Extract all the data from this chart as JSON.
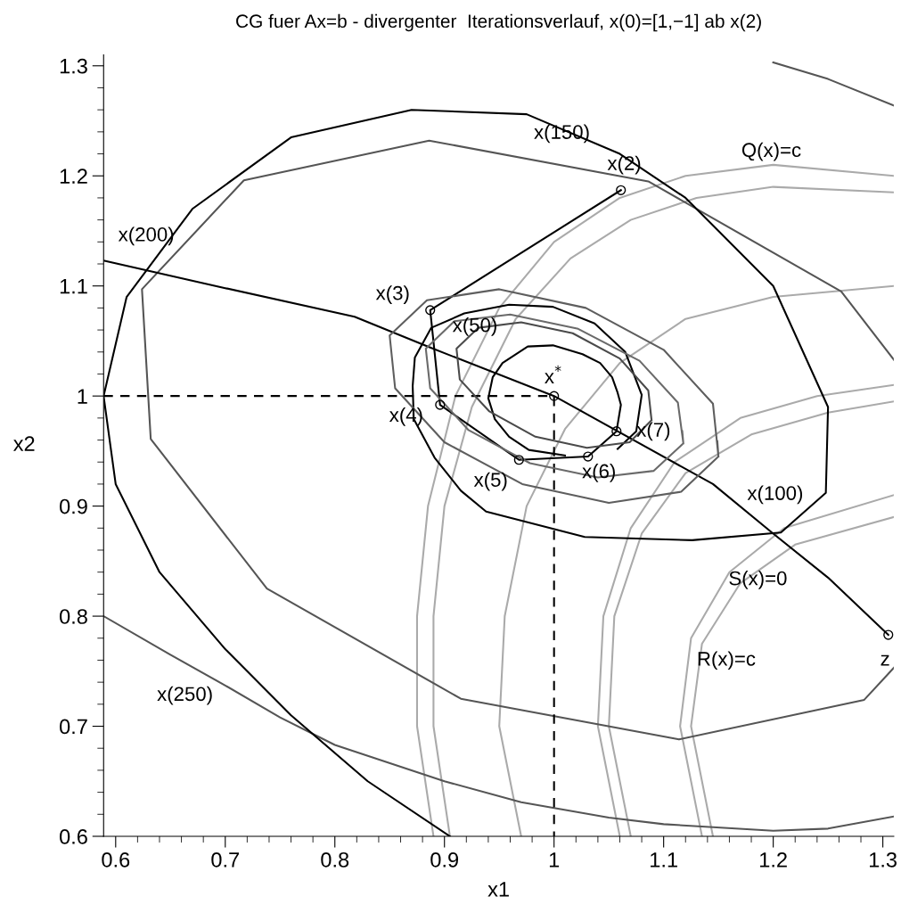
{
  "chart_data": {
    "type": "line",
    "title": "CG fuer Ax=b - divergenter  Iterationsverlauf, x(0)=[1,−1] ab x(2)",
    "xlabel": "x1",
    "ylabel": "x2",
    "xlim": [
      0.589,
      1.31
    ],
    "ylim": [
      0.6,
      1.31
    ],
    "xticks": [
      0.6,
      {
        "value": 0.62,
        "label": null
      },
      {
        "value": 0.64,
        "label": null
      },
      {
        "value": 0.66,
        "label": null
      },
      {
        "value": 0.68,
        "label": null
      },
      0.7,
      {
        "value": 0.72,
        "label": null
      },
      {
        "value": 0.74,
        "label": null
      },
      {
        "value": 0.76,
        "label": null
      },
      {
        "value": 0.78,
        "label": null
      },
      0.8,
      {
        "value": 0.82,
        "label": null
      },
      {
        "value": 0.84,
        "label": null
      },
      {
        "value": 0.86,
        "label": null
      },
      {
        "value": 0.88,
        "label": null
      },
      0.9,
      {
        "value": 0.92,
        "label": null
      },
      {
        "value": 0.94,
        "label": null
      },
      {
        "value": 0.96,
        "label": null
      },
      {
        "value": 0.98,
        "label": null
      },
      1,
      {
        "value": 1.02,
        "label": null
      },
      {
        "value": 1.04,
        "label": null
      },
      {
        "value": 1.06,
        "label": null
      },
      {
        "value": 1.08,
        "label": null
      },
      1.1,
      {
        "value": 1.12,
        "label": null
      },
      {
        "value": 1.14,
        "label": null
      },
      {
        "value": 1.16,
        "label": null
      },
      {
        "value": 1.18,
        "label": null
      },
      1.2,
      {
        "value": 1.22,
        "label": null
      },
      {
        "value": 1.24,
        "label": null
      },
      {
        "value": 1.26,
        "label": null
      },
      {
        "value": 1.28,
        "label": null
      },
      1.3
    ],
    "yticks": [
      0.6,
      {
        "value": 0.62,
        "label": null
      },
      {
        "value": 0.64,
        "label": null
      },
      {
        "value": 0.66,
        "label": null
      },
      {
        "value": 0.68,
        "label": null
      },
      0.7,
      {
        "value": 0.72,
        "label": null
      },
      {
        "value": 0.74,
        "label": null
      },
      {
        "value": 0.76,
        "label": null
      },
      {
        "value": 0.78,
        "label": null
      },
      0.8,
      {
        "value": 0.82,
        "label": null
      },
      {
        "value": 0.84,
        "label": null
      },
      {
        "value": 0.86,
        "label": null
      },
      {
        "value": 0.88,
        "label": null
      },
      0.9,
      {
        "value": 0.92,
        "label": null
      },
      {
        "value": 0.94,
        "label": null
      },
      {
        "value": 0.96,
        "label": null
      },
      {
        "value": 0.98,
        "label": null
      },
      1,
      {
        "value": 1.02,
        "label": null
      },
      {
        "value": 1.04,
        "label": null
      },
      {
        "value": 1.06,
        "label": null
      },
      {
        "value": 1.08,
        "label": null
      },
      1.1,
      {
        "value": 1.12,
        "label": null
      },
      {
        "value": 1.14,
        "label": null
      },
      {
        "value": 1.16,
        "label": null
      },
      {
        "value": 1.18,
        "label": null
      },
      1.2,
      {
        "value": 1.22,
        "label": null
      },
      {
        "value": 1.24,
        "label": null
      },
      {
        "value": 1.26,
        "label": null
      },
      {
        "value": 1.28,
        "label": null
      },
      1.3
    ],
    "grid": false,
    "legend": false,
    "series": [
      {
        "color": "#aaaaaa",
        "x": [
          0.89,
          0.875,
          0.875,
          0.885,
          0.91,
          0.95,
          1.0,
          1.06,
          1.12,
          1.2,
          1.31
        ],
        "values": [
          0.6,
          0.7,
          0.8,
          0.9,
          1.0,
          1.08,
          1.14,
          1.18,
          1.2,
          1.21,
          1.2
        ]
      },
      {
        "color": "#aaaaaa",
        "x": [
          0.905,
          0.89,
          0.89,
          0.9,
          0.925,
          0.965,
          1.015,
          1.07,
          1.13,
          1.2,
          1.31
        ],
        "values": [
          0.6,
          0.7,
          0.8,
          0.9,
          0.99,
          1.07,
          1.125,
          1.16,
          1.18,
          1.19,
          1.185
        ]
      },
      {
        "color": "#aaaaaa",
        "x": [
          0.97,
          0.95,
          0.955,
          0.975,
          1.01,
          1.06,
          1.12,
          1.2,
          1.31
        ],
        "values": [
          0.6,
          0.7,
          0.8,
          0.9,
          0.97,
          1.03,
          1.07,
          1.09,
          1.1
        ]
      },
      {
        "color": "#aaaaaa",
        "x": [
          1.06,
          1.04,
          1.045,
          1.07,
          1.11,
          1.17,
          1.24,
          1.31
        ],
        "values": [
          0.6,
          0.7,
          0.8,
          0.88,
          0.94,
          0.98,
          1.0,
          1.01
        ]
      },
      {
        "color": "#aaaaaa",
        "x": [
          1.07,
          1.05,
          1.055,
          1.08,
          1.12,
          1.18,
          1.25,
          1.31
        ],
        "values": [
          0.6,
          0.7,
          0.8,
          0.875,
          0.93,
          0.965,
          0.985,
          0.995
        ]
      },
      {
        "color": "#aaaaaa",
        "x": [
          1.135,
          1.115,
          1.125,
          1.16,
          1.21,
          1.31
        ],
        "values": [
          0.6,
          0.7,
          0.78,
          0.84,
          0.88,
          0.91
        ]
      },
      {
        "color": "#aaaaaa",
        "x": [
          1.145,
          1.125,
          1.135,
          1.17,
          1.22,
          1.31
        ],
        "values": [
          0.6,
          0.7,
          0.775,
          0.83,
          0.865,
          0.89
        ]
      },
      {
        "color": "#555555",
        "x": [
          1.31,
          1.262,
          1.086,
          0.886,
          0.717,
          0.624,
          0.632,
          0.738,
          0.915,
          1.114,
          1.283,
          1.31
        ],
        "values": [
          1.033,
          1.095,
          1.195,
          1.232,
          1.196,
          1.097,
          0.961,
          0.825,
          0.725,
          0.688,
          0.724,
          0.753
        ]
      },
      {
        "color": "#555555",
        "x": [
          0.589,
          0.65,
          0.7,
          0.75,
          0.8,
          0.9,
          0.97,
          1.05,
          1.1,
          1.2,
          1.25,
          1.31
        ],
        "values": [
          0.8,
          0.765,
          0.737,
          0.708,
          0.683,
          0.65,
          0.631,
          0.617,
          0.611,
          0.605,
          0.607,
          0.618
        ]
      },
      {
        "color": "#555555",
        "x": [
          1.2,
          1.25,
          1.31
        ],
        "values": [
          1.303,
          1.288,
          1.264
        ]
      },
      {
        "color": "#000000",
        "x": [
          0.589,
          0.7,
          0.818,
          0.887,
          1.0,
          1.145,
          1.2,
          1.25,
          1.305
        ],
        "values": [
          1.123,
          1.098,
          1.072,
          1.044,
          1.0,
          0.92,
          0.875,
          0.835,
          0.783
        ]
      },
      {
        "color": "#000000",
        "line_style": "dashed",
        "x": [
          0.589,
          1.0,
          1.0
        ],
        "values": [
          1.0,
          1.0,
          0.6
        ]
      },
      {
        "color": "#000000",
        "x": [
          1.058,
          1.075,
          1.08,
          1.065,
          1.037,
          0.999,
          0.959,
          0.918,
          0.888,
          0.873,
          0.871,
          0.872,
          0.891,
          0.915,
          0.938,
          1.028,
          1.126,
          1.207,
          1.248,
          1.25,
          1.2,
          1.12,
          1.06,
          0.975,
          0.87,
          0.76,
          0.67,
          0.61,
          0.589,
          0.6,
          0.64,
          0.7,
          0.76,
          0.83,
          0.905
        ],
        "values": [
          0.952,
          0.968,
          1.001,
          1.04,
          1.066,
          1.081,
          1.083,
          1.075,
          1.062,
          1.035,
          1.009,
          0.979,
          0.944,
          0.914,
          0.895,
          0.872,
          0.869,
          0.876,
          0.912,
          0.99,
          1.1,
          1.18,
          1.22,
          1.256,
          1.26,
          1.235,
          1.17,
          1.09,
          1.0,
          0.92,
          0.84,
          0.77,
          0.71,
          0.65,
          0.6
        ]
      },
      {
        "color": "#000000",
        "x": [
          1.061,
          0.887,
          0.896,
          0.968,
          1.031,
          1.057,
          1.061,
          1.058,
          1.053,
          1.042,
          1.026,
          0.999,
          0.976,
          0.953,
          0.944,
          0.94,
          0.946,
          0.959,
          0.977,
          1.01
        ],
        "values": [
          1.187,
          1.078,
          0.992,
          0.942,
          0.945,
          0.968,
          0.992,
          1.003,
          1.017,
          1.03,
          1.038,
          1.046,
          1.045,
          1.03,
          1.017,
          0.998,
          0.979,
          0.963,
          0.951,
          0.946
        ]
      },
      {
        "color": "#4a4a4a",
        "x": [
          1.089,
          1.086,
          1.06,
          1.017,
          0.97,
          0.931,
          0.911,
          0.914,
          0.941,
          0.983,
          1.03,
          1.069,
          1.089,
          1.088
        ],
        "values": [
          0.978,
          1.005,
          1.034,
          1.057,
          1.067,
          1.062,
          1.043,
          1.015,
          0.986,
          0.963,
          0.953,
          0.958,
          0.978,
          0.986
        ]
      },
      {
        "color": "#6a6a6a",
        "x": [
          1.118,
          1.113,
          1.078,
          1.022,
          0.96,
          0.909,
          0.883,
          0.887,
          0.922,
          0.978,
          1.04,
          1.091,
          1.118,
          1.117
        ],
        "values": [
          0.957,
          0.994,
          1.032,
          1.061,
          1.074,
          1.068,
          1.043,
          1.007,
          0.969,
          0.939,
          0.926,
          0.932,
          0.957,
          0.968
        ]
      },
      {
        "color": "#5e5e5e",
        "x": [
          1.15,
          1.145,
          1.1,
          1.029,
          0.95,
          0.884,
          0.85,
          0.855,
          0.9,
          0.971,
          1.05,
          1.116,
          1.15,
          1.149
        ],
        "values": [
          0.945,
          0.993,
          1.042,
          1.08,
          1.097,
          1.087,
          1.055,
          1.007,
          0.958,
          0.92,
          0.903,
          0.913,
          0.945,
          0.959
        ]
      },
      {
        "type": "scatter",
        "color": "#000000",
        "marker": "circle",
        "x": [
          1.061,
          0.887,
          0.896,
          0.968,
          1.031,
          1.057,
          1.0,
          1.305
        ],
        "values": [
          1.187,
          1.078,
          0.992,
          0.942,
          0.945,
          0.968,
          1.0,
          0.783
        ]
      }
    ],
    "annotations": [
      "x(150)",
      "x(2)",
      "Q(x)=c",
      "x(200)",
      "x(3)",
      "x(50)",
      "x$^{*}$",
      "x(4)",
      "x(7)",
      "x(5)",
      "x(6)",
      "x(100)",
      "S(x)=0",
      "x(250)",
      "R(x)=c",
      "z"
    ]
  }
}
